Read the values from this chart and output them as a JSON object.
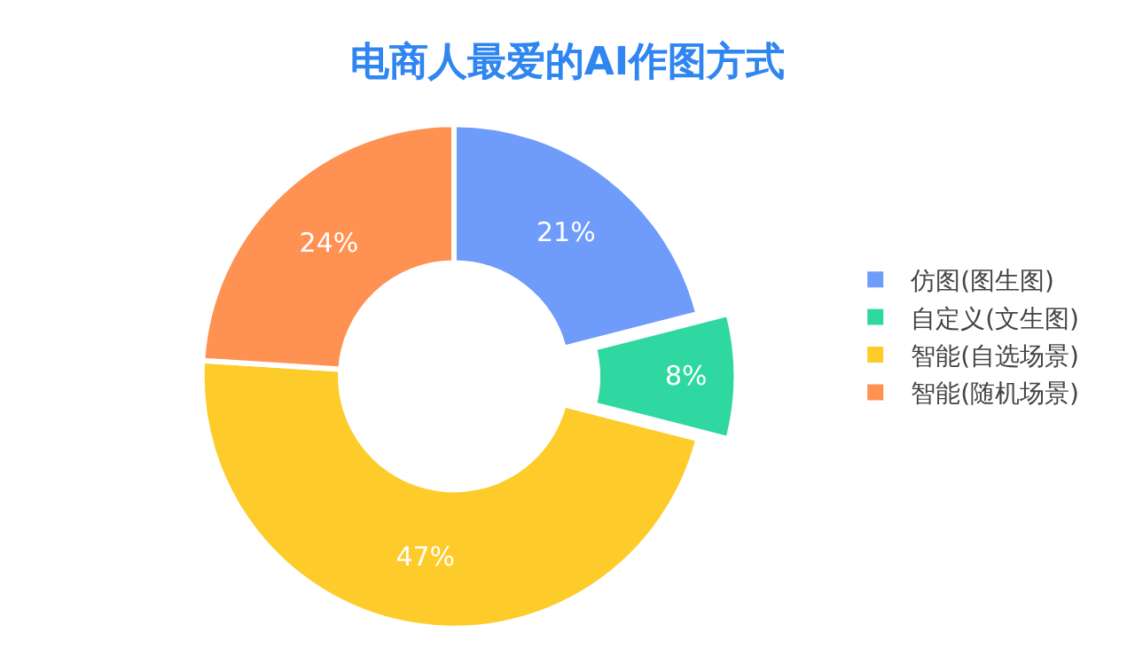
{
  "chart_data": {
    "type": "donut",
    "title": "电商人最爱的AI作图方式",
    "categories": [
      "仿图(图生图)",
      "自定义(文生图)",
      "智能(自选场景)",
      "智能(随机场景)"
    ],
    "values": [
      21,
      8,
      47,
      24
    ],
    "value_labels": [
      "21%",
      "8%",
      "47%",
      "24%"
    ],
    "colors": [
      "#6f9bfa",
      "#2fd8a0",
      "#fdcb2a",
      "#ff9152"
    ],
    "legend": "right"
  }
}
